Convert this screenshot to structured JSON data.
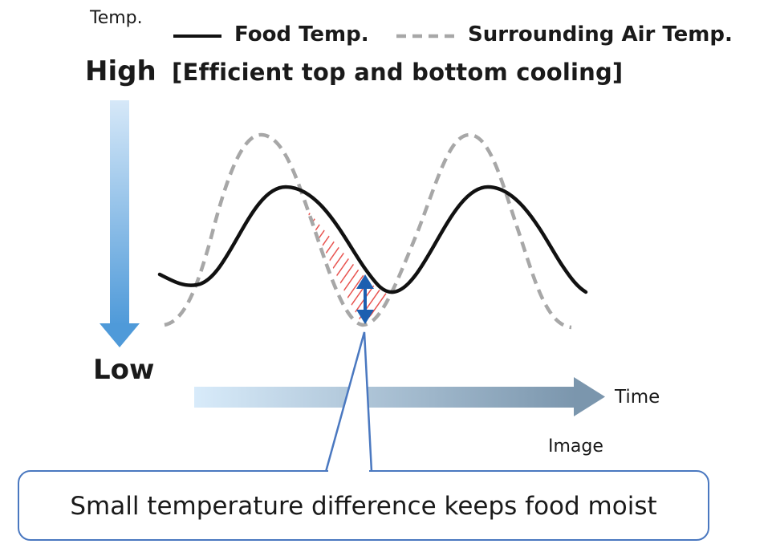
{
  "axis": {
    "y_title": "Temp.",
    "high_label": "High",
    "low_label": "Low",
    "x_title": "Time"
  },
  "legend": {
    "food_label": "Food Temp.",
    "air_label": "Surrounding Air Temp."
  },
  "subtitle": "[Efficient top and bottom cooling]",
  "image_note": "Image",
  "callout": "Small temperature difference keeps food moist",
  "colors": {
    "food_line": "#111111",
    "air_line": "#a7a7a7",
    "highlight_hatch": "#e8534f",
    "difference_arrow": "#1c5fb0",
    "vertical_arrow_top": "#cfe3f6",
    "vertical_arrow_bottom": "#4f9ad9",
    "time_arrow_start": "#d8ebfa",
    "time_arrow_end": "#7b96ad",
    "callout_border": "#4a78c0"
  }
}
